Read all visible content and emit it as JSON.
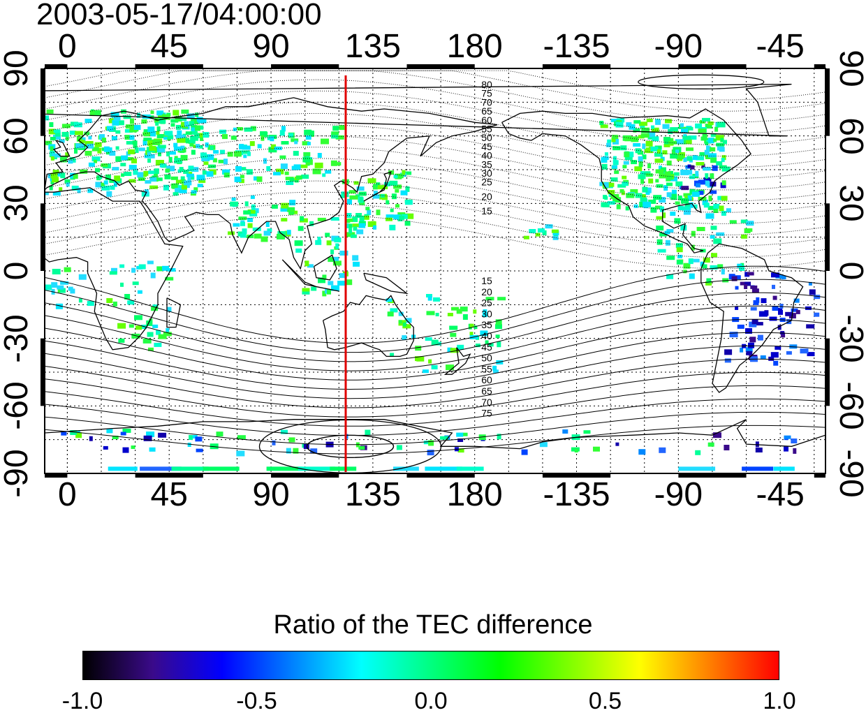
{
  "timestamp": "2003-05-17/04:00:00",
  "map": {
    "x_ticks_top": [
      "0",
      "45",
      "90",
      "135",
      "180",
      "-135",
      "-90",
      "-45"
    ],
    "x_ticks_bottom": [
      "0",
      "45",
      "90",
      "135",
      "180",
      "-135",
      "-90",
      "-45"
    ],
    "y_ticks_left": [
      "90",
      "60",
      "30",
      "0",
      "-30",
      "-60",
      "-90"
    ],
    "y_ticks_right": [
      "90",
      "60",
      "30",
      "0",
      "-30",
      "-60",
      "-90"
    ],
    "longitude_range": [
      -10,
      335
    ],
    "latitude_range": [
      -90,
      90
    ],
    "meridian_marker": {
      "longitude": 123,
      "color": "#e00000"
    },
    "contour_labels_north": [
      "80",
      "75",
      "70",
      "65",
      "60",
      "55",
      "50",
      "45",
      "40",
      "35",
      "30",
      "25",
      "20",
      "15"
    ],
    "contour_labels_south": [
      "15",
      "20",
      "25",
      "30",
      "35",
      "40",
      "45",
      "50",
      "55",
      "60",
      "65",
      "70",
      "75"
    ]
  },
  "colorbar": {
    "title": "Ratio of the TEC difference",
    "tick_labels": [
      "-1.0",
      "-0.5",
      "0.0",
      "0.5",
      "1.0"
    ],
    "range": [
      -1.0,
      1.0
    ],
    "colors": [
      "#000000",
      "#3a0a8a",
      "#0000ff",
      "#0080ff",
      "#00ffff",
      "#00ff80",
      "#00ff00",
      "#80ff00",
      "#ffff00",
      "#ff8000",
      "#ff0000"
    ]
  }
}
